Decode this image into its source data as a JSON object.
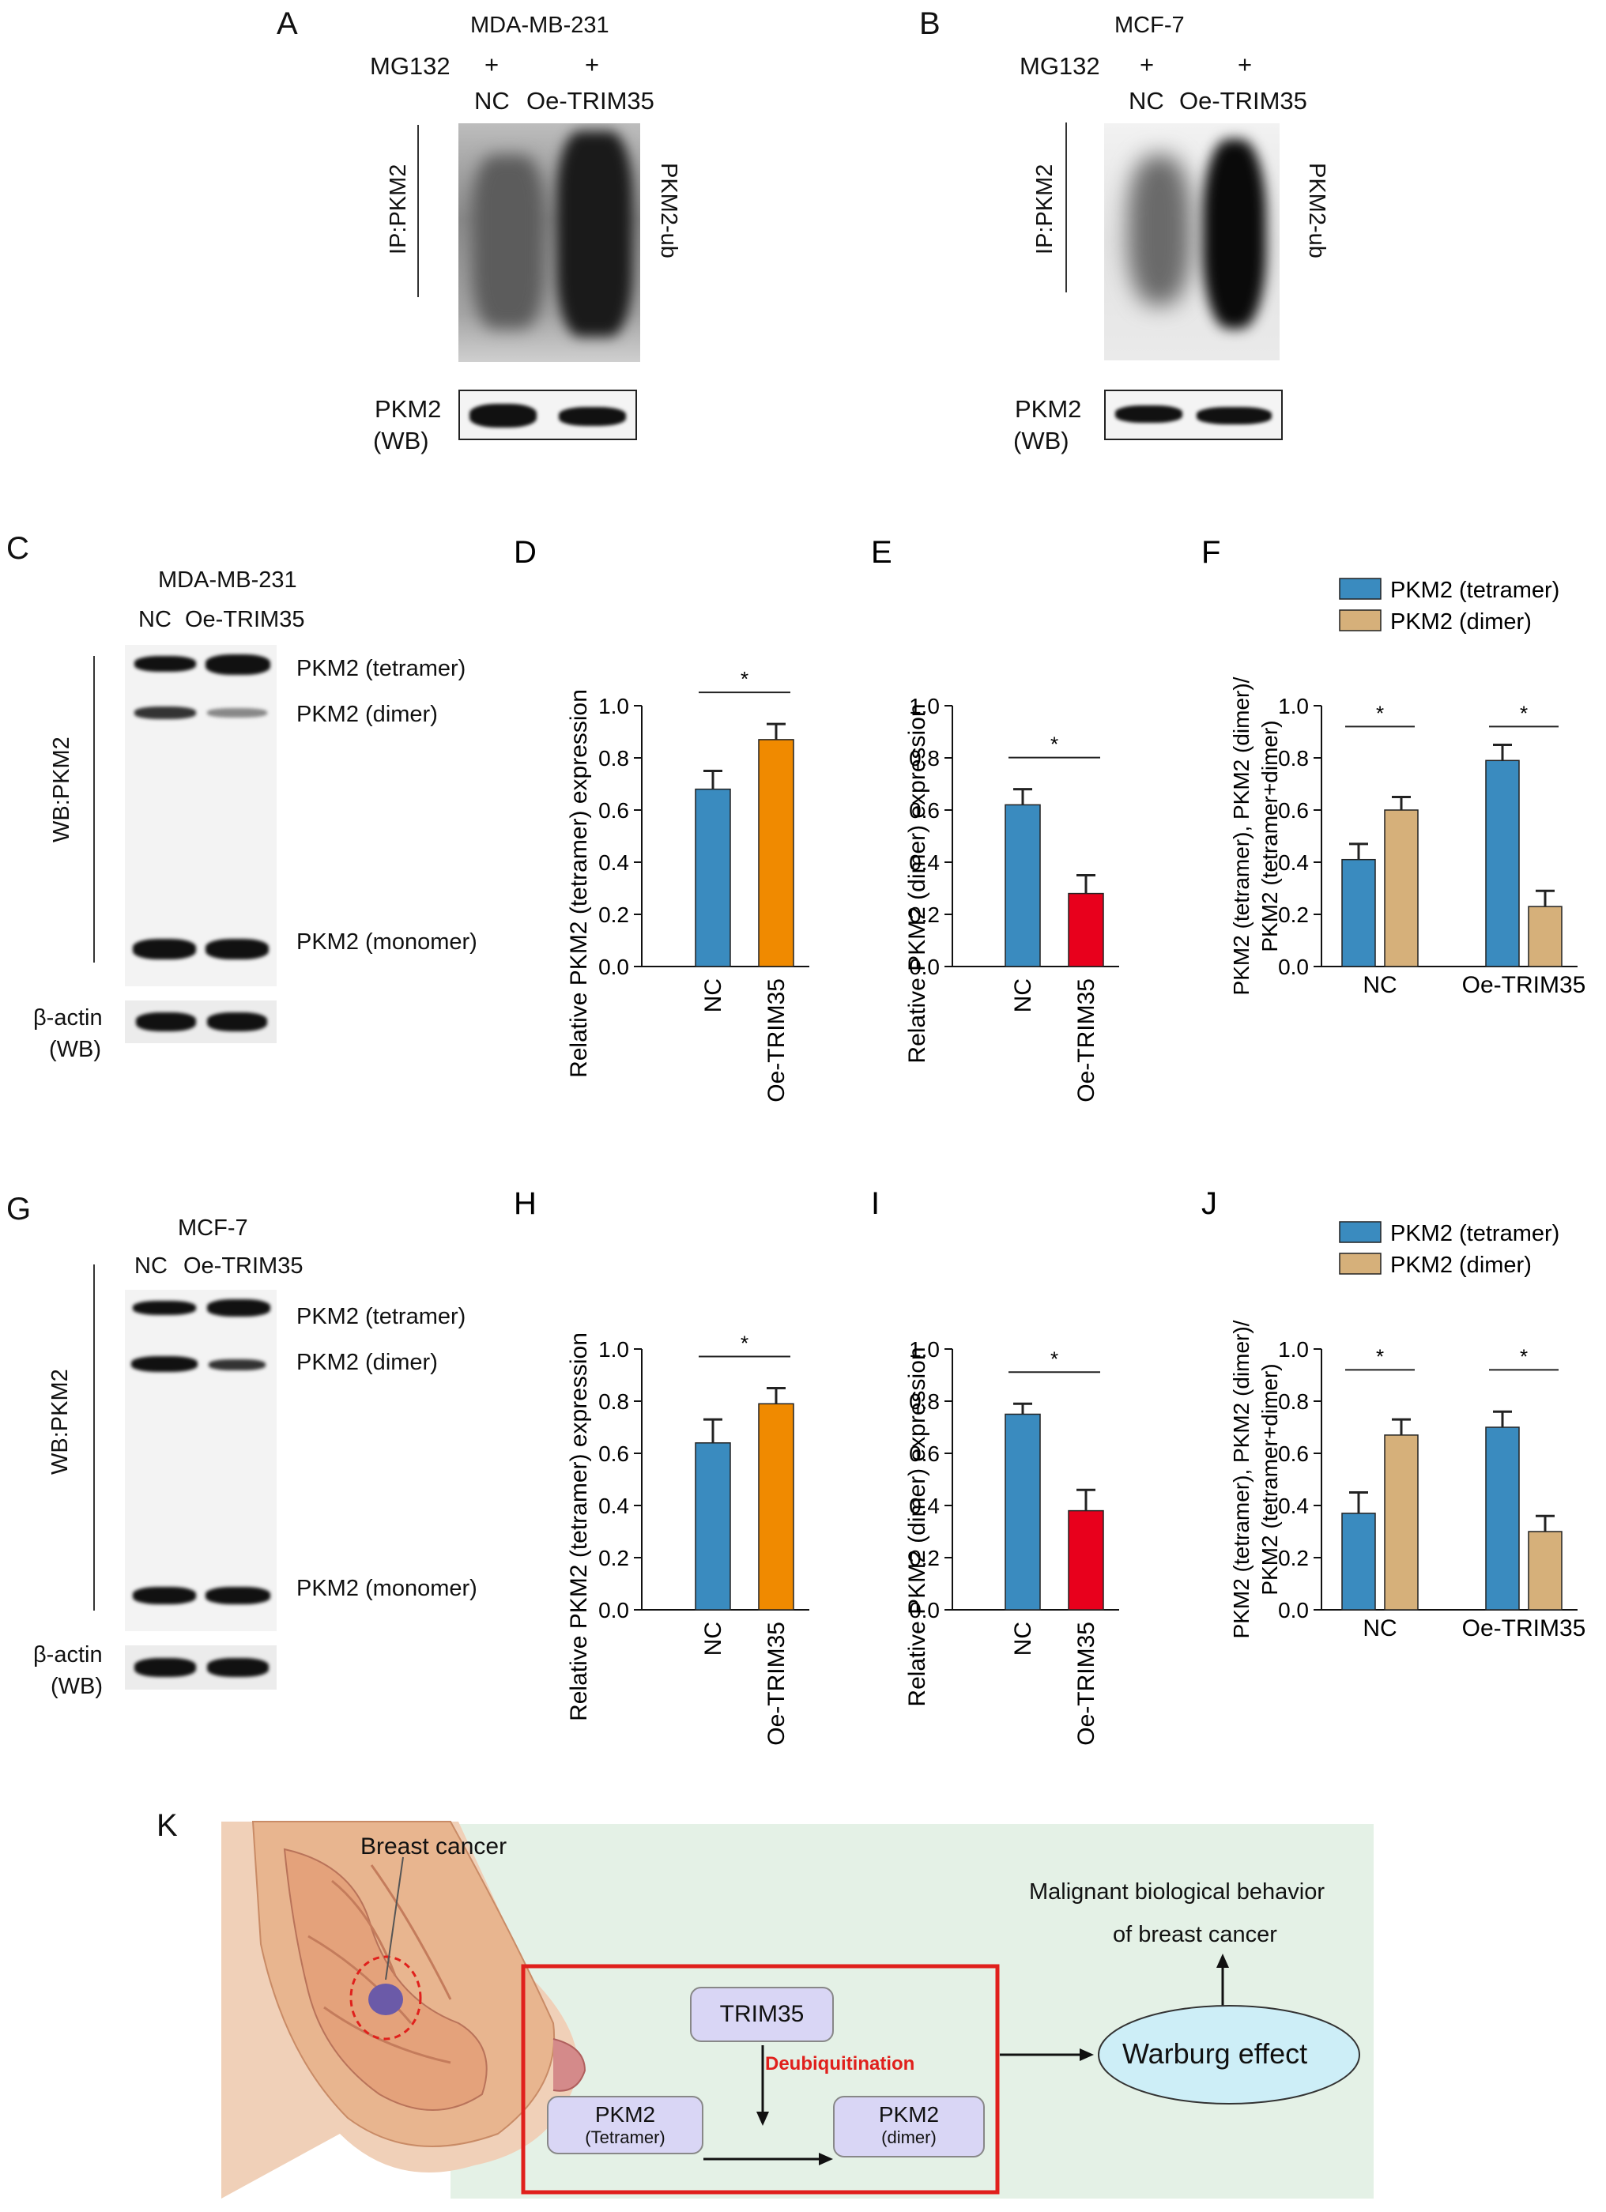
{
  "panels": {
    "A": {
      "letter": "A",
      "cell_line": "MDA-MB-231",
      "mg132": "MG132",
      "plus": "+",
      "lanes": [
        "NC",
        "Oe-TRIM35"
      ],
      "ip_label": "IP:PKM2",
      "ub_label": "PKM2-ub",
      "wb_label1": "PKM2",
      "wb_label2": "(WB)"
    },
    "B": {
      "letter": "B",
      "cell_line": "MCF-7",
      "mg132": "MG132",
      "plus": "+",
      "lanes": [
        "NC",
        "Oe-TRIM35"
      ],
      "ip_label": "IP:PKM2",
      "ub_label": "PKM2-ub",
      "wb_label1": "PKM2",
      "wb_label2": "(WB)"
    },
    "C": {
      "letter": "C",
      "cell_line": "MDA-MB-231",
      "lanes": [
        "NC",
        "Oe-TRIM35"
      ],
      "side_label": "WB:PKM2",
      "bands": [
        "PKM2 (tetramer)",
        "PKM2 (dimer)",
        "PKM2 (monomer)"
      ],
      "actin1": "β-actin",
      "actin2": "(WB)"
    },
    "G": {
      "letter": "G",
      "cell_line": "MCF-7",
      "lanes": [
        "NC",
        "Oe-TRIM35"
      ],
      "side_label": "WB:PKM2",
      "bands": [
        "PKM2 (tetramer)",
        "PKM2 (dimer)",
        "PKM2 (monomer)"
      ],
      "actin1": "β-actin",
      "actin2": "(WB)"
    },
    "K": {
      "letter": "K",
      "breast_cancer": "Breast cancer",
      "trim35": "TRIM35",
      "deubiq": "Deubiquitination",
      "pkm2_tet1": "PKM2",
      "pkm2_tet2": "(Tetramer)",
      "pkm2_dim1": "PKM2",
      "pkm2_dim2": "(dimer)",
      "warburg": "Warburg effect",
      "malignant1": "Malignant biological behavior",
      "malignant2": "of breast cancer"
    }
  },
  "colors": {
    "blue": "#3a8bbf",
    "orange": "#f08a00",
    "red": "#e8001c",
    "tan": "#d6b07a",
    "deubiq": "#e0201c",
    "boxred": "#e0201c",
    "bg_green": "#e4f1e6",
    "warburg_fill": "#cdeef7"
  },
  "chart_data": [
    {
      "id": "D",
      "letter": "D",
      "type": "bar",
      "categories": [
        "NC",
        "Oe-TRIM35"
      ],
      "values": [
        0.68,
        0.87
      ],
      "errors": [
        0.07,
        0.06
      ],
      "ylabel": "Relative PKM2 (tetramer) expression",
      "ylim": [
        0,
        1.0
      ],
      "yticks": [
        "0.0",
        "0.2",
        "0.4",
        "0.6",
        "0.8",
        "1.0"
      ],
      "sig": "*"
    },
    {
      "id": "E",
      "letter": "E",
      "type": "bar",
      "categories": [
        "NC",
        "Oe-TRIM35"
      ],
      "values": [
        0.62,
        0.28
      ],
      "errors": [
        0.06,
        0.07
      ],
      "ylabel": "Relative PKM2 (dimer) expression",
      "ylim": [
        0,
        1.0
      ],
      "yticks": [
        "0.0",
        "0.2",
        "0.4",
        "0.6",
        "0.8",
        "1.0"
      ],
      "sig": "*"
    },
    {
      "id": "F",
      "letter": "F",
      "type": "bar",
      "categories": [
        "NC",
        "Oe-TRIM35"
      ],
      "series": [
        {
          "name": "PKM2 (tetramer)",
          "values": [
            0.41,
            0.79
          ],
          "errors": [
            0.06,
            0.06
          ]
        },
        {
          "name": "PKM2 (dimer)",
          "values": [
            0.6,
            0.23
          ],
          "errors": [
            0.05,
            0.06
          ]
        }
      ],
      "ylabel1": "PKM2 (tetramer), PKM2 (dimer)/",
      "ylabel2": "PKM2 (tetramer+dimer)",
      "ylim": [
        0,
        1.0
      ],
      "yticks": [
        "0.0",
        "0.2",
        "0.4",
        "0.6",
        "0.8",
        "1.0"
      ],
      "sig": "*",
      "legend": "top"
    },
    {
      "id": "H",
      "letter": "H",
      "type": "bar",
      "categories": [
        "NC",
        "Oe-TRIM35"
      ],
      "values": [
        0.64,
        0.79
      ],
      "errors": [
        0.09,
        0.06
      ],
      "ylabel": "Relative PKM2 (tetramer) expression",
      "ylim": [
        0,
        1.0
      ],
      "yticks": [
        "0.0",
        "0.2",
        "0.4",
        "0.6",
        "0.8",
        "1.0"
      ],
      "sig": "*"
    },
    {
      "id": "I",
      "letter": "I",
      "type": "bar",
      "categories": [
        "NC",
        "Oe-TRIM35"
      ],
      "values": [
        0.75,
        0.38
      ],
      "errors": [
        0.04,
        0.08
      ],
      "ylabel": "Relative PKM2 (dimer) expression",
      "ylim": [
        0,
        1.0
      ],
      "yticks": [
        "0.0",
        "0.2",
        "0.4",
        "0.6",
        "0.8",
        "1.0"
      ],
      "sig": "*"
    },
    {
      "id": "J",
      "letter": "J",
      "type": "bar",
      "categories": [
        "NC",
        "Oe-TRIM35"
      ],
      "series": [
        {
          "name": "PKM2 (tetramer)",
          "values": [
            0.37,
            0.7
          ],
          "errors": [
            0.08,
            0.06
          ]
        },
        {
          "name": "PKM2 (dimer)",
          "values": [
            0.67,
            0.3
          ],
          "errors": [
            0.06,
            0.06
          ]
        }
      ],
      "ylabel1": "PKM2 (tetramer), PKM2 (dimer)/",
      "ylabel2": "PKM2 (tetramer+dimer)",
      "ylim": [
        0,
        1.0
      ],
      "yticks": [
        "0.0",
        "0.2",
        "0.4",
        "0.6",
        "0.8",
        "1.0"
      ],
      "sig": "*",
      "legend": "top"
    }
  ]
}
